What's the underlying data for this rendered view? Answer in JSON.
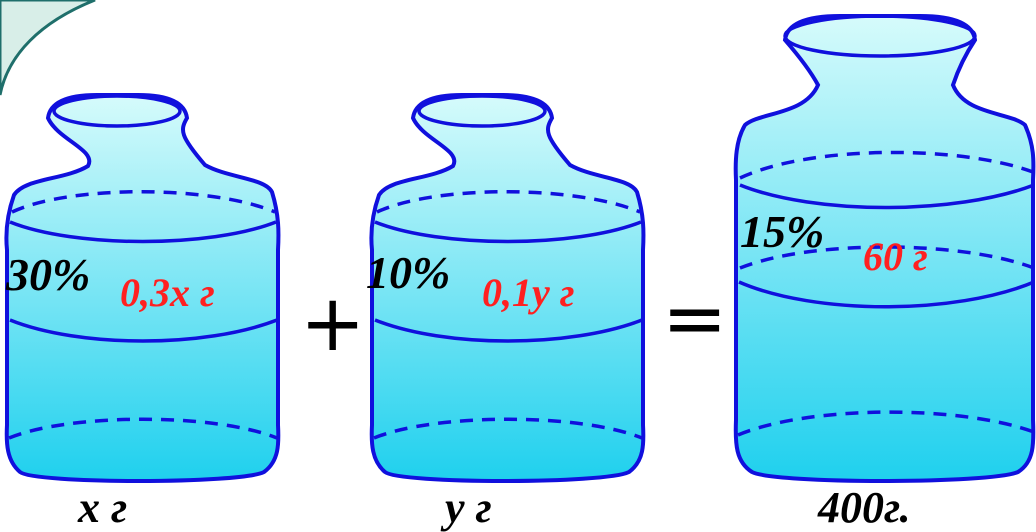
{
  "colors": {
    "background": "#ffffff",
    "corner_tab_fill": "#d8eee8",
    "corner_tab_stroke": "#1f6f6b",
    "vessel_outline": "#1010dd",
    "liquid_top": "#d6fbfb",
    "liquid_bottom": "#1fd0ee",
    "percent_text": "#000000",
    "amount_text": "#ff2020"
  },
  "icons": {
    "vessel": "jar-vessel-icon",
    "plus": "plus-sign",
    "equals": "equals-sign"
  },
  "vessels": [
    {
      "percent": "30%",
      "amount": "0,3x г",
      "mass": "x г"
    },
    {
      "percent": "10%",
      "amount": "0,1y г",
      "mass": "y г"
    },
    {
      "percent": "15%",
      "amount": "60 г",
      "mass": "400г."
    }
  ],
  "operators": {
    "plus": "+",
    "equals": "="
  }
}
